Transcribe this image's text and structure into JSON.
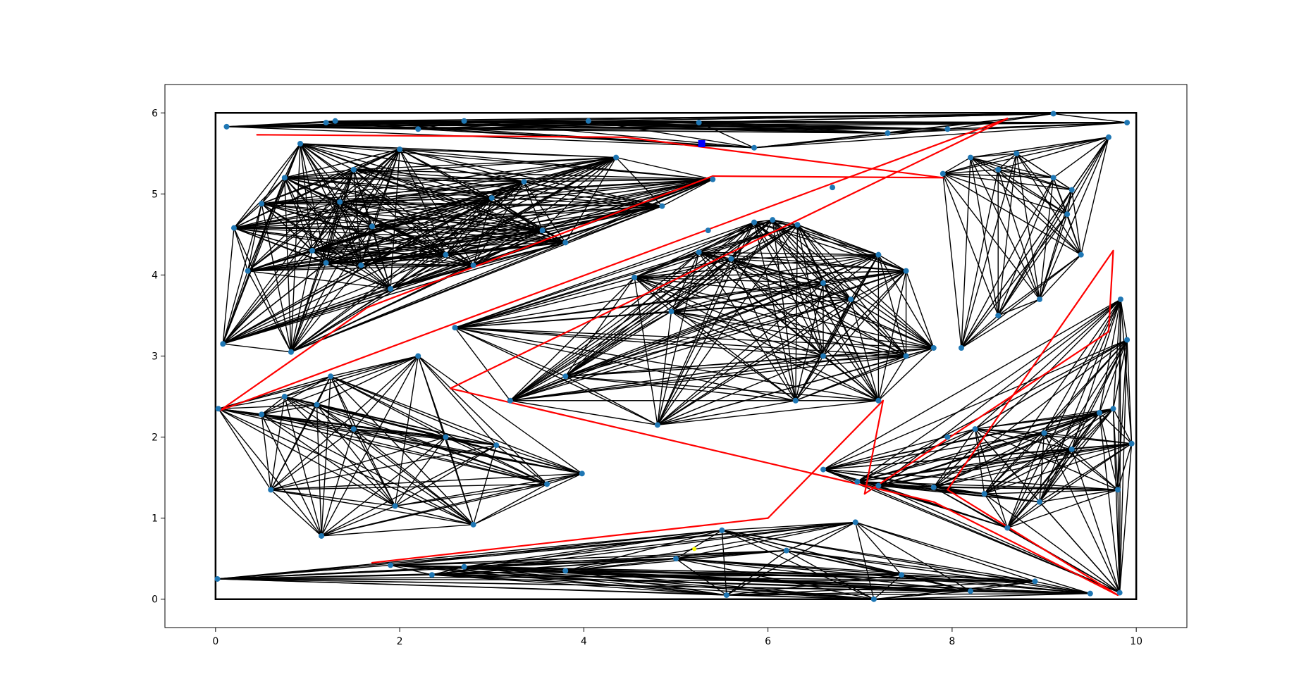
{
  "chart_data": {
    "type": "scatter",
    "title": "",
    "xlabel": "",
    "ylabel": "",
    "xlim": [
      -0.55,
      10.55
    ],
    "ylim": [
      -0.35,
      6.35
    ],
    "grid": false,
    "legend": "none",
    "x_ticks": [
      0,
      2,
      4,
      6,
      8,
      10
    ],
    "y_ticks": [
      0,
      1,
      2,
      3,
      4,
      5,
      6
    ],
    "x_tick_labels": [
      "0",
      "2",
      "4",
      "6",
      "8",
      "10"
    ],
    "y_tick_labels": [
      "0",
      "1",
      "2",
      "3",
      "4",
      "5",
      "6"
    ],
    "colors": {
      "edges": "#000000",
      "path": "#ff0000",
      "nodes": "#1f77b4",
      "start": "#0000ff",
      "goal": "#ffff00",
      "boundary": "#000000"
    },
    "boundary": [
      [
        0,
        0
      ],
      [
        10,
        0
      ],
      [
        10,
        6
      ],
      [
        0,
        6
      ]
    ],
    "node_groups": [
      [
        [
          0.12,
          5.83
        ],
        [
          1.2,
          5.88
        ],
        [
          1.3,
          5.9
        ],
        [
          2.2,
          5.8
        ],
        [
          2.7,
          5.9
        ],
        [
          4.05,
          5.9
        ],
        [
          5.25,
          5.88
        ],
        [
          5.85,
          5.57
        ],
        [
          7.3,
          5.75
        ],
        [
          7.95,
          5.8
        ],
        [
          9.1,
          5.99
        ],
        [
          9.9,
          5.88
        ]
      ],
      [
        [
          0.2,
          4.58
        ],
        [
          0.35,
          4.05
        ],
        [
          0.5,
          4.88
        ],
        [
          0.75,
          5.2
        ],
        [
          0.92,
          5.62
        ],
        [
          1.05,
          4.3
        ],
        [
          1.2,
          4.15
        ],
        [
          1.35,
          4.9
        ],
        [
          1.5,
          5.3
        ],
        [
          1.58,
          4.12
        ],
        [
          1.7,
          4.6
        ],
        [
          2.0,
          5.55
        ],
        [
          2.5,
          4.25
        ],
        [
          2.8,
          4.12
        ],
        [
          3.0,
          4.95
        ],
        [
          3.35,
          5.15
        ],
        [
          3.55,
          4.55
        ],
        [
          3.8,
          4.4
        ],
        [
          4.35,
          5.45
        ],
        [
          4.85,
          4.85
        ],
        [
          5.4,
          5.18
        ],
        [
          1.9,
          3.83
        ],
        [
          0.82,
          3.05
        ],
        [
          0.08,
          3.15
        ]
      ],
      [
        [
          4.55,
          3.97
        ],
        [
          4.95,
          3.55
        ],
        [
          5.25,
          4.28
        ],
        [
          5.6,
          4.2
        ],
        [
          5.85,
          4.65
        ],
        [
          6.05,
          4.68
        ],
        [
          6.32,
          4.62
        ],
        [
          6.6,
          3.9
        ],
        [
          6.9,
          3.7
        ],
        [
          7.2,
          4.25
        ],
        [
          7.5,
          4.05
        ],
        [
          7.8,
          3.1
        ],
        [
          7.5,
          3.0
        ],
        [
          6.6,
          3.0
        ],
        [
          6.3,
          2.45
        ],
        [
          7.2,
          2.45
        ],
        [
          4.8,
          2.15
        ],
        [
          3.2,
          2.45
        ],
        [
          2.6,
          3.35
        ],
        [
          3.8,
          2.75
        ]
      ],
      [
        [
          8.2,
          5.45
        ],
        [
          7.9,
          5.25
        ],
        [
          8.5,
          5.3
        ],
        [
          8.7,
          5.5
        ],
        [
          9.1,
          5.2
        ],
        [
          9.3,
          5.05
        ],
        [
          9.25,
          4.75
        ],
        [
          9.4,
          4.25
        ],
        [
          8.95,
          3.7
        ],
        [
          8.5,
          3.5
        ],
        [
          8.1,
          3.1
        ],
        [
          9.7,
          5.7
        ]
      ],
      [
        [
          0.03,
          2.35
        ],
        [
          0.5,
          2.28
        ],
        [
          0.75,
          2.5
        ],
        [
          1.1,
          2.4
        ],
        [
          1.25,
          2.75
        ],
        [
          0.6,
          1.35
        ],
        [
          1.15,
          0.78
        ],
        [
          1.95,
          1.15
        ],
        [
          2.2,
          3.0
        ],
        [
          2.8,
          0.92
        ],
        [
          3.05,
          1.9
        ],
        [
          3.6,
          1.42
        ],
        [
          3.98,
          1.55
        ],
        [
          1.5,
          2.1
        ],
        [
          2.5,
          2.0
        ]
      ],
      [
        [
          7.2,
          1.4
        ],
        [
          7.8,
          1.38
        ],
        [
          8.25,
          2.1
        ],
        [
          8.35,
          1.3
        ],
        [
          8.6,
          0.88
        ],
        [
          8.95,
          1.2
        ],
        [
          9.0,
          2.05
        ],
        [
          9.3,
          1.85
        ],
        [
          9.6,
          2.3
        ],
        [
          9.75,
          2.35
        ],
        [
          9.83,
          3.7
        ],
        [
          9.9,
          3.2
        ],
        [
          9.95,
          1.92
        ],
        [
          9.8,
          1.35
        ],
        [
          9.82,
          0.08
        ],
        [
          6.6,
          1.6
        ],
        [
          6.97,
          1.45
        ]
      ],
      [
        [
          0.02,
          0.25
        ],
        [
          1.9,
          0.42
        ],
        [
          2.35,
          0.3
        ],
        [
          2.7,
          0.4
        ],
        [
          3.8,
          0.35
        ],
        [
          5.0,
          0.5
        ],
        [
          5.5,
          0.85
        ],
        [
          5.55,
          0.05
        ],
        [
          6.2,
          0.6
        ],
        [
          6.95,
          0.95
        ],
        [
          7.15,
          0.0
        ],
        [
          7.45,
          0.3
        ],
        [
          8.2,
          0.1
        ],
        [
          8.9,
          0.22
        ],
        [
          9.5,
          0.07
        ]
      ]
    ],
    "isolated_nodes": [
      [
        6.7,
        5.08
      ],
      [
        5.35,
        4.55
      ],
      [
        7.95,
        2.0
      ]
    ],
    "path": [
      [
        0.45,
        5.73
      ],
      [
        4.45,
        5.7
      ],
      [
        7.9,
        5.2
      ],
      [
        5.4,
        5.22
      ],
      [
        1.65,
        3.6
      ],
      [
        0.05,
        2.33
      ],
      [
        8.6,
        5.93
      ],
      [
        2.55,
        2.6
      ],
      [
        7.8,
        1.2
      ],
      [
        9.8,
        0.05
      ],
      [
        7.95,
        1.35
      ],
      [
        9.75,
        4.3
      ],
      [
        9.7,
        3.3
      ],
      [
        7.05,
        1.3
      ],
      [
        7.25,
        2.45
      ],
      [
        6.0,
        1.0
      ],
      [
        1.7,
        0.45
      ]
    ],
    "start": [
      5.28,
      5.62
    ],
    "goal": [
      5.2,
      0.62
    ]
  }
}
